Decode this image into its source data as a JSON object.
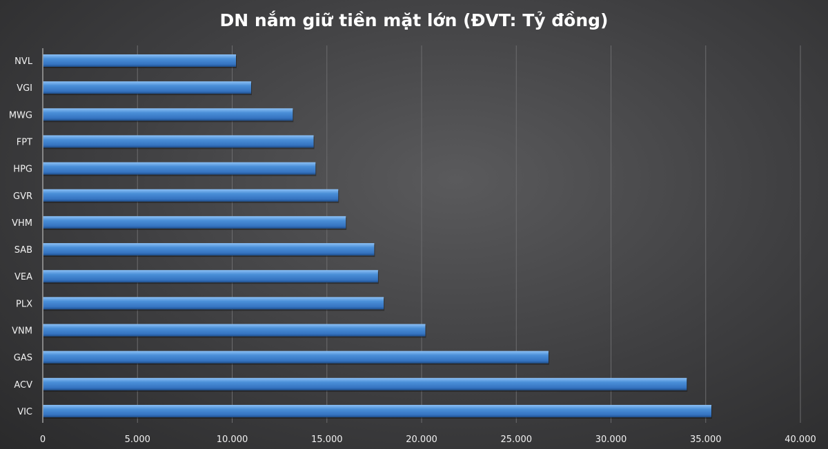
{
  "chart_data": {
    "type": "bar",
    "orientation": "horizontal",
    "title": "DN nắm giữ tiền mặt lớn (ĐVT: Tỷ đồng)",
    "xlabel": "",
    "ylabel": "",
    "categories": [
      "NVL",
      "VGI",
      "MWG",
      "FPT",
      "HPG",
      "GVR",
      "VHM",
      "SAB",
      "VEA",
      "PLX",
      "VNM",
      "GAS",
      "ACV",
      "VIC"
    ],
    "values": [
      10200,
      11000,
      13200,
      14300,
      14400,
      15600,
      16000,
      17500,
      17700,
      18000,
      20200,
      26700,
      34000,
      35300
    ],
    "xlim": [
      0,
      40000
    ],
    "xticks": [
      0,
      5000,
      10000,
      15000,
      20000,
      25000,
      30000,
      35000,
      40000
    ],
    "xtick_labels": [
      "0",
      "5.000",
      "10.000",
      "15.000",
      "20.000",
      "25.000",
      "30.000",
      "35.000",
      "40.000"
    ],
    "grid": "vertical",
    "legend": "none",
    "bar_color": "#4a8fd8"
  }
}
